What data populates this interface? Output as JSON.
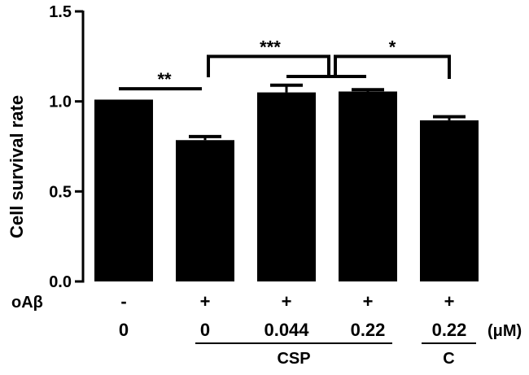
{
  "chart_data": {
    "type": "bar",
    "ylabel": "Cell survival rate",
    "ylim": [
      0,
      1.5
    ],
    "yticks": [
      0.0,
      0.5,
      1.0,
      1.5
    ],
    "ytick_labels": [
      "0.0",
      "0.5",
      "1.0",
      "1.5"
    ],
    "values": [
      1.01,
      0.785,
      1.05,
      1.055,
      0.895
    ],
    "errors": [
      0.0,
      0.02,
      0.04,
      0.01,
      0.02
    ],
    "bar_color": "#000000",
    "condition_rows": [
      {
        "label": "oAβ",
        "values": [
          "-",
          "+",
          "+",
          "+",
          "+"
        ]
      },
      {
        "label": "",
        "values": [
          "0",
          "0",
          "0.044",
          "0.22",
          "0.22"
        ],
        "unit": "(μM)"
      }
    ],
    "groups": [
      {
        "label": "CSP",
        "from": 1,
        "to": 3
      },
      {
        "label": "C",
        "from": 4,
        "to": 4
      }
    ],
    "significance": [
      {
        "label": "**",
        "from": 0,
        "to": 1,
        "level": 1.07
      },
      {
        "label": "***",
        "from": 1,
        "to": 3,
        "level": 1.25
      },
      {
        "label": "*",
        "from": 3,
        "to": 4,
        "level": 1.25
      }
    ]
  }
}
